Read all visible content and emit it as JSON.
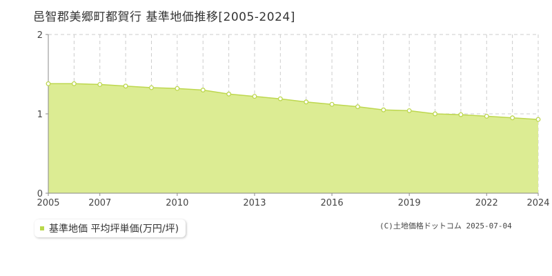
{
  "title": "邑智郡美郷町都賀行 基準地価推移[2005-2024]",
  "legend_label": "基準地価 平均坪単価(万円/坪)",
  "copyright": "(C)土地価格ドットコム 2025-07-04",
  "colors": {
    "fill": "#dcec93",
    "line": "#bdd74e",
    "point_fill": "#ffffff",
    "grid": "#cccccc",
    "axis": "#888888",
    "label": "#444444"
  },
  "chart_data": {
    "type": "area",
    "x": [
      2005,
      2006,
      2007,
      2008,
      2009,
      2010,
      2011,
      2012,
      2013,
      2014,
      2015,
      2016,
      2017,
      2018,
      2019,
      2020,
      2021,
      2022,
      2023,
      2024
    ],
    "x_tick_labels": [
      "2005",
      "2007",
      "2010",
      "2013",
      "2016",
      "2019",
      "2022",
      "2024"
    ],
    "y_tick_labels": [
      "0",
      "1",
      "2"
    ],
    "series": [
      {
        "values": [
          1.38,
          1.38,
          1.37,
          1.35,
          1.33,
          1.32,
          1.3,
          1.25,
          1.22,
          1.19,
          1.15,
          1.12,
          1.09,
          1.05,
          1.04,
          1.0,
          0.99,
          0.97,
          0.95,
          0.93
        ]
      }
    ],
    "xlim": [
      2005,
      2024
    ],
    "ylim": [
      0,
      2
    ],
    "grid": true
  }
}
